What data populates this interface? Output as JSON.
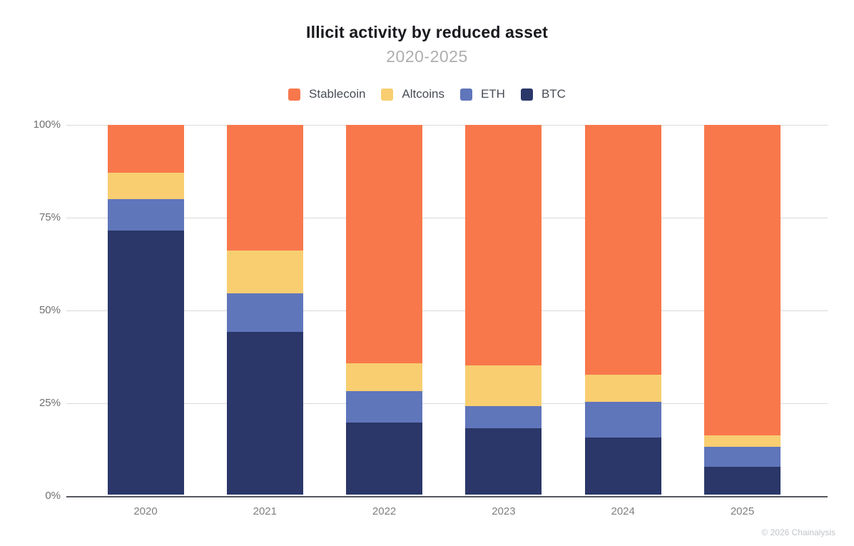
{
  "chart_data": {
    "type": "bar",
    "stacked": true,
    "title": "Illicit activity by reduced asset",
    "subtitle": "2020-2025",
    "categories": [
      "2020",
      "2021",
      "2022",
      "2023",
      "2024",
      "2025"
    ],
    "series": [
      {
        "name": "Stablecoin",
        "color": "#F8784C",
        "values": [
          13,
          34,
          64.5,
          65,
          67.5,
          84
        ]
      },
      {
        "name": "Altcoins",
        "color": "#F8CE71",
        "values": [
          7,
          11.5,
          7.5,
          11,
          7.5,
          3
        ]
      },
      {
        "name": "ETH",
        "color": "#6076BB",
        "values": [
          8.5,
          10.5,
          8.5,
          6,
          9.5,
          5.5
        ]
      },
      {
        "name": "BTC",
        "color": "#2B3769",
        "values": [
          71.5,
          44,
          19.5,
          18,
          15.5,
          7.5
        ]
      }
    ],
    "xlabel": "",
    "ylabel": "",
    "ylim": [
      0,
      100
    ],
    "yticks": [
      {
        "value": 0,
        "label": "0%"
      },
      {
        "value": 25,
        "label": "25%"
      },
      {
        "value": 50,
        "label": "50%"
      },
      {
        "value": 75,
        "label": "75%"
      },
      {
        "value": 100,
        "label": "100%"
      }
    ],
    "grid": true,
    "legend_position": "top"
  },
  "footer": {
    "copyright": "© 2026 Chainalysis"
  },
  "style_colors": {
    "title_text": "#17191D",
    "subtitle_text": "#AEAEAE",
    "axis_text": "#757575",
    "gridline": "#DADADA",
    "axis_line": "#54575C",
    "footer_text": "#C1C4CA"
  }
}
